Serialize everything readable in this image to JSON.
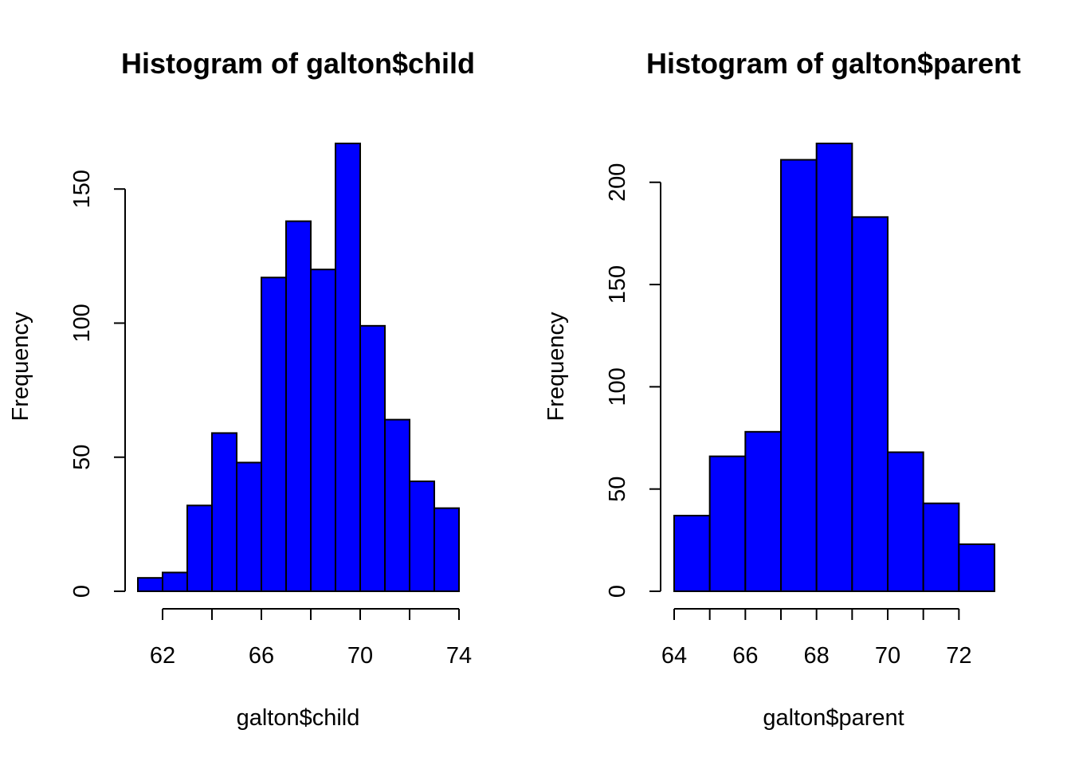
{
  "chart_data": [
    {
      "type": "bar",
      "title": "Histogram of galton$child",
      "xlabel": "galton$child",
      "ylabel": "Frequency",
      "bar_color": "#0000ff",
      "bins": [
        {
          "x0": 61,
          "x1": 62,
          "count": 5
        },
        {
          "x0": 62,
          "x1": 63,
          "count": 7
        },
        {
          "x0": 63,
          "x1": 64,
          "count": 32
        },
        {
          "x0": 64,
          "x1": 65,
          "count": 59
        },
        {
          "x0": 65,
          "x1": 66,
          "count": 48
        },
        {
          "x0": 66,
          "x1": 67,
          "count": 117
        },
        {
          "x0": 67,
          "x1": 68,
          "count": 138
        },
        {
          "x0": 68,
          "x1": 69,
          "count": 120
        },
        {
          "x0": 69,
          "x1": 70,
          "count": 167
        },
        {
          "x0": 70,
          "x1": 71,
          "count": 99
        },
        {
          "x0": 71,
          "x1": 72,
          "count": 64
        },
        {
          "x0": 72,
          "x1": 73,
          "count": 41
        },
        {
          "x0": 73,
          "x1": 74,
          "count": 31
        }
      ],
      "xlim": [
        61,
        74
      ],
      "ylim": [
        0,
        167
      ],
      "x_axis_range": [
        62,
        74
      ],
      "x_ticks": [
        62,
        64,
        66,
        68,
        70,
        72,
        74
      ],
      "x_tick_labels": [
        "62",
        "",
        "66",
        "",
        "70",
        "",
        "74"
      ],
      "y_ticks": [
        0,
        50,
        100,
        150
      ],
      "y_tick_labels": [
        "0",
        "50",
        "100",
        "150"
      ],
      "grid": false
    },
    {
      "type": "bar",
      "title": "Histogram of galton$parent",
      "xlabel": "galton$parent",
      "ylabel": "Frequency",
      "bar_color": "#0000ff",
      "bins": [
        {
          "x0": 64,
          "x1": 65,
          "count": 37
        },
        {
          "x0": 65,
          "x1": 66,
          "count": 66
        },
        {
          "x0": 66,
          "x1": 67,
          "count": 78
        },
        {
          "x0": 67,
          "x1": 68,
          "count": 211
        },
        {
          "x0": 68,
          "x1": 69,
          "count": 219
        },
        {
          "x0": 69,
          "x1": 70,
          "count": 183
        },
        {
          "x0": 70,
          "x1": 71,
          "count": 68
        },
        {
          "x0": 71,
          "x1": 72,
          "count": 43
        },
        {
          "x0": 72,
          "x1": 73,
          "count": 23
        }
      ],
      "xlim": [
        64,
        73
      ],
      "ylim": [
        0,
        219
      ],
      "x_axis_range": [
        64,
        72
      ],
      "x_ticks": [
        64,
        65,
        66,
        67,
        68,
        69,
        70,
        71,
        72
      ],
      "x_tick_labels": [
        "64",
        "",
        "66",
        "",
        "68",
        "",
        "70",
        "",
        "72"
      ],
      "y_ticks": [
        0,
        50,
        100,
        150,
        200
      ],
      "y_tick_labels": [
        "0",
        "50",
        "100",
        "150",
        "200"
      ],
      "grid": false
    }
  ]
}
